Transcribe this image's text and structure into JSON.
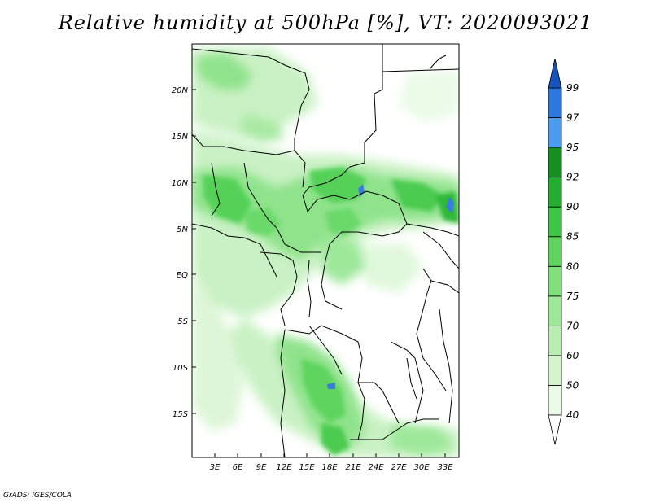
{
  "title": "Relative humidity at 500hPa [%], VT: 2020093021",
  "credit": "GrADS: IGES/COLA",
  "map": {
    "lat_ticks": [
      "20N",
      "15N",
      "10N",
      "5N",
      "EQ",
      "5S",
      "10S",
      "15S"
    ],
    "lon_ticks": [
      "3E",
      "6E",
      "9E",
      "12E",
      "15E",
      "18E",
      "21E",
      "24E",
      "27E",
      "30E",
      "33E"
    ]
  },
  "colorbar": {
    "levels": [
      "40",
      "50",
      "60",
      "70",
      "75",
      "80",
      "85",
      "90",
      "92",
      "95",
      "97",
      "99"
    ],
    "colors": [
      "#ffffff",
      "#e9fbe6",
      "#d2f5cc",
      "#b8efb0",
      "#9ee89a",
      "#7fe07c",
      "#5fd55f",
      "#3dc643",
      "#22ae2e",
      "#158f1e",
      "#4a9cf0",
      "#2a78e0",
      "#1553c0"
    ]
  }
}
